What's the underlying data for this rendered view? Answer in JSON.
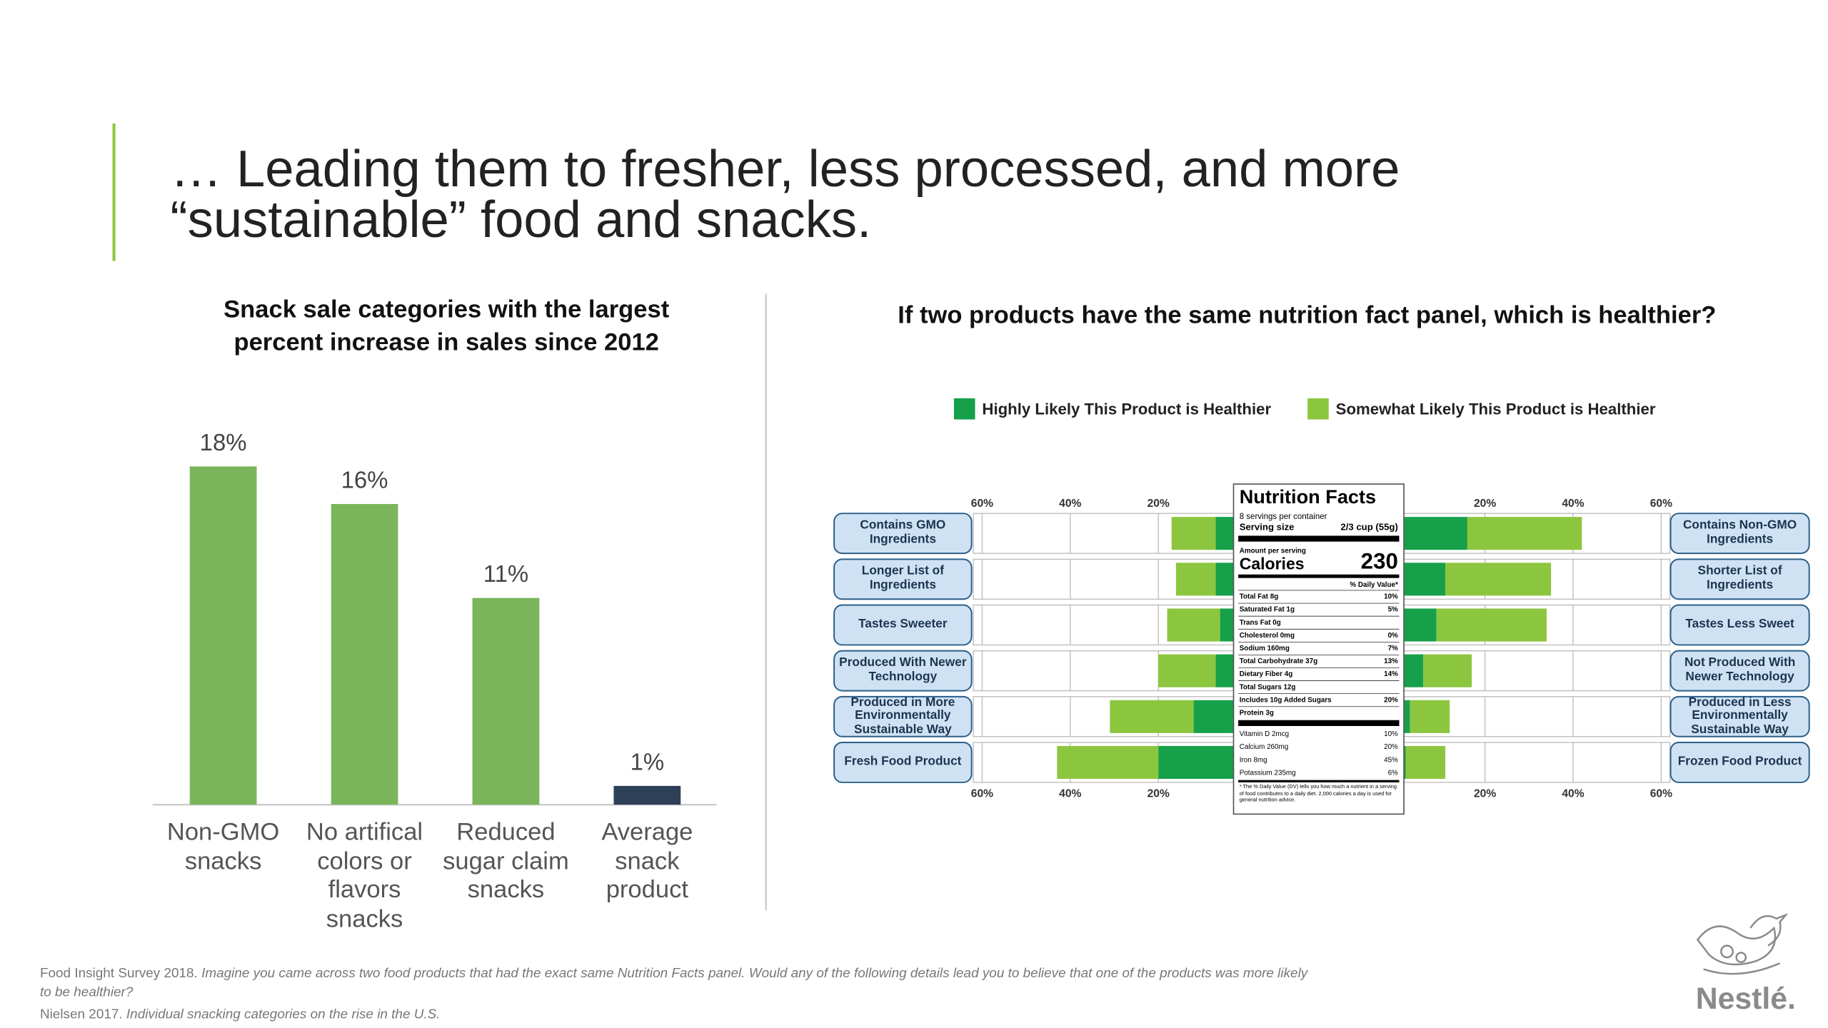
{
  "title": [
    "… Leading them to fresher, less processed, and more",
    "“sustainable” food and snacks."
  ],
  "chart_data": [
    {
      "type": "bar",
      "title": "Snack sale categories with the largest percent increase in sales since 2012",
      "categories": [
        "Non-GMO snacks",
        "No artifical colors or flavors snacks",
        "Reduced sugar claim snacks",
        "Average snack product"
      ],
      "values": [
        18,
        16,
        11,
        1
      ],
      "value_labels": [
        "18%",
        "16%",
        "11%",
        "1%"
      ],
      "colors": [
        "#7ab55c",
        "#7ab55c",
        "#7ab55c",
        "#2e4057"
      ]
    },
    {
      "type": "diverging-bar",
      "title": "If two products have the same nutrition fact panel, which is healthier?",
      "categories_left": [
        "Contains GMO Ingredients",
        "Longer List of Ingredients",
        "Tastes Sweeter",
        "Produced With Newer Technology",
        "Produced in More Environmentally Sustainable Way",
        "Fresh Food Product"
      ],
      "categories_right": [
        "Contains Non-GMO Ingredients",
        "Shorter List of Ingredients",
        "Tastes Less Sweet",
        "Not Produced With Newer Technology",
        "Produced in Less Environmentally Sustainable Way",
        "Frozen Food Product"
      ],
      "series": [
        {
          "name": "Highly Likely This Product is Healthier",
          "color": "#16a04a",
          "values_left": [
            7,
            7,
            6,
            7,
            12,
            20
          ],
          "values_right": [
            16,
            11,
            9,
            6,
            3,
            2
          ]
        },
        {
          "name": "Somewhat Likely This Product is Healthier",
          "color": "#8cc63f",
          "values_left": [
            10,
            9,
            12,
            13,
            19,
            23
          ],
          "values_right": [
            26,
            24,
            25,
            11,
            9,
            9
          ]
        }
      ],
      "xlim": [
        0,
        62
      ],
      "xticks": [
        {
          "value": 20,
          "label": "20%"
        },
        {
          "value": 40,
          "label": "40%"
        },
        {
          "value": 60,
          "label": "60%"
        }
      ]
    }
  ],
  "nutrition_panel": {
    "title": "Nutrition Facts",
    "servings": "8 servings per container",
    "serving_size_label": "Serving size",
    "serving_size": "2/3 cup (55g)",
    "amount": "Amount per serving",
    "calories_label": "Calories",
    "calories": "230",
    "dv_header": "% Daily Value*",
    "rows": [
      {
        "label": "Total Fat 8g",
        "dv": "10%"
      },
      {
        "label": "Saturated Fat 1g",
        "dv": "5%"
      },
      {
        "label": "Trans Fat 0g"
      },
      {
        "label": "Cholesterol 0mg",
        "dv": "0%"
      },
      {
        "label": "Sodium 160mg",
        "dv": "7%"
      },
      {
        "label": "Total Carbohydrate 37g",
        "dv": "13%"
      },
      {
        "label": "Dietary Fiber 4g",
        "dv": "14%"
      },
      {
        "label": "Total Sugars 12g"
      },
      {
        "label": "Includes 10g Added Sugars",
        "dv": "20%"
      },
      {
        "label": "Protein 3g"
      }
    ],
    "vitamins": [
      {
        "label": "Vitamin D 2mcg",
        "dv": "10%"
      },
      {
        "label": "Calcium 260mg",
        "dv": "20%"
      },
      {
        "label": "Iron 8mg",
        "dv": "45%"
      },
      {
        "label": "Potassium 235mg",
        "dv": "6%"
      }
    ],
    "footnote": "* The % Daily Value (DV) tells you how much a nutrient in a serving of food contributes to a daily diet. 2,000 calories a day is used for general nutrition advice."
  },
  "footnotes": [
    {
      "source": "Food Insight Survey 2018.",
      "text": "Imagine you came across two food products that had the exact same Nutrition Facts panel. Would any of the following details lead you to believe that one of the products was more likely to be healthier?"
    },
    {
      "source": "Nielsen 2017.",
      "text": "Individual snacking categories on the rise in the U.S."
    }
  ],
  "logo": "Nestlé."
}
